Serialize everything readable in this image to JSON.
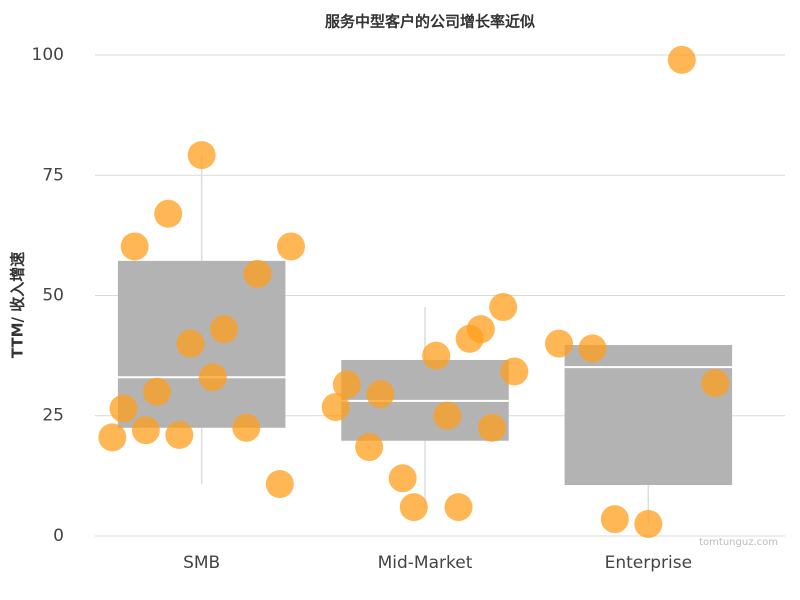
{
  "chart_data": {
    "type": "box",
    "title": "服务中型客户的公司增长率近似",
    "y_label": "TTM/ 收入增速",
    "watermark": "tomtunguz.com",
    "categories": [
      "SMB",
      "Mid-Market",
      "Enterprise"
    ],
    "boxes": [
      {
        "whisker_low": 10.8,
        "q1": 22.5,
        "median": 33,
        "q3": 57.2,
        "whisker_high": 79.2
      },
      {
        "whisker_low": 5.8,
        "q1": 19.8,
        "median": 28.1,
        "q3": 36.6,
        "whisker_high": 47.6
      },
      {
        "whisker_low": 2.5,
        "q1": 10.6,
        "median": 35.1,
        "q3": 39.7,
        "whisker_high": 39.7
      }
    ],
    "points": [
      [
        20.5,
        22,
        21,
        33,
        22.5,
        10.8,
        26.5,
        30,
        40,
        43,
        54.5,
        60.2,
        60.2,
        67,
        79.2
      ],
      [
        6,
        22.5,
        26.8,
        18.5,
        12,
        37.5,
        41,
        47.6,
        31.5,
        29.5,
        6,
        25,
        43,
        34.2
      ],
      [
        3.5,
        2.5,
        99,
        31.8,
        40,
        39
      ]
    ],
    "box_color": "#b3b3b3",
    "point_color": "#ff9f1c",
    "ylim": [
      -2,
      103
    ],
    "yticks": [
      0,
      25,
      50,
      75,
      100
    ],
    "grid": true
  }
}
